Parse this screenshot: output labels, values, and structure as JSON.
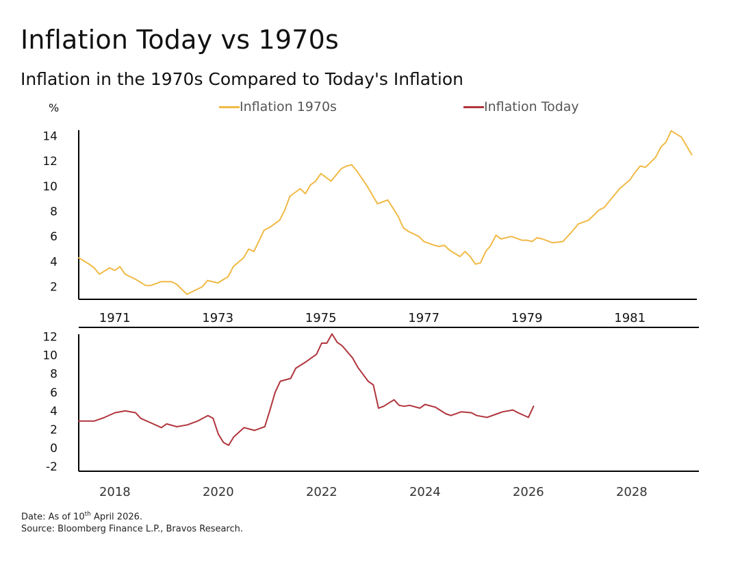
{
  "title": "Inflation Today vs 1970s",
  "subtitle": "Inflation in the 1970s Compared to Today's Inflation",
  "y_unit": "%",
  "footer": {
    "date_prefix": "Date: As of 10",
    "date_sup": "th",
    "date_suffix": " April 2026.",
    "source": "Source: Bloomberg Finance L.P., Bravos Research."
  },
  "colors": {
    "series_1970s": "#F0B944",
    "series_today": "#B0343C",
    "axis": "#000000"
  },
  "chart_data": [
    {
      "type": "line",
      "panel": "top",
      "legend_placement": "top-center",
      "grid": false,
      "xlim": [
        1970.3,
        1982.3
      ],
      "ylim": [
        1,
        15
      ],
      "y_ticks": [
        2,
        4,
        6,
        8,
        10,
        12,
        14
      ],
      "x_ticks": [
        "1971",
        "1973",
        "1975",
        "1977",
        "1979",
        "1981"
      ],
      "series": [
        {
          "name": "Inflation 1970s",
          "x": [
            1970.3,
            1970.5,
            1970.6,
            1970.7,
            1970.9,
            1971.0,
            1971.1,
            1971.2,
            1971.4,
            1971.6,
            1971.7,
            1971.9,
            1972.1,
            1972.2,
            1972.4,
            1972.5,
            1972.7,
            1972.8,
            1973.0,
            1973.2,
            1973.3,
            1973.5,
            1973.6,
            1973.7,
            1973.9,
            1974.0,
            1974.2,
            1974.3,
            1974.4,
            1974.6,
            1974.7,
            1974.8,
            1974.9,
            1975.0,
            1975.2,
            1975.4,
            1975.5,
            1975.6,
            1975.7,
            1975.9,
            1976.0,
            1976.1,
            1976.3,
            1976.5,
            1976.6,
            1976.7,
            1976.9,
            1977.0,
            1977.2,
            1977.3,
            1977.4,
            1977.5,
            1977.7,
            1977.8,
            1977.9,
            1978.0,
            1978.1,
            1978.2,
            1978.3,
            1978.4,
            1978.5,
            1978.7,
            1978.9,
            1979.0,
            1979.1,
            1979.2,
            1979.3,
            1979.5,
            1979.7,
            1979.9,
            1980.0,
            1980.2,
            1980.4,
            1980.5,
            1980.7,
            1980.8,
            1981.0,
            1981.1,
            1981.2,
            1981.3,
            1981.5,
            1981.6,
            1981.7,
            1981.8,
            1982.0,
            1982.2
          ],
          "values": [
            4.3,
            3.8,
            3.5,
            3.0,
            3.5,
            3.3,
            3.6,
            3.0,
            2.6,
            2.1,
            2.1,
            2.4,
            2.4,
            2.2,
            1.4,
            1.6,
            2.0,
            2.5,
            2.3,
            2.8,
            3.6,
            4.3,
            5.0,
            4.8,
            6.5,
            6.7,
            7.3,
            8.1,
            9.2,
            9.8,
            9.4,
            10.1,
            10.4,
            11.0,
            10.4,
            11.4,
            11.6,
            11.7,
            11.2,
            10.0,
            9.3,
            8.6,
            8.9,
            7.6,
            6.7,
            6.4,
            6.0,
            5.6,
            5.3,
            5.2,
            5.3,
            4.9,
            4.4,
            4.8,
            4.4,
            3.8,
            3.9,
            4.8,
            5.3,
            6.1,
            5.8,
            6.0,
            5.7,
            5.7,
            5.6,
            5.9,
            5.8,
            5.5,
            5.6,
            6.5,
            7.0,
            7.3,
            8.1,
            8.3,
            9.3,
            9.8,
            10.5,
            11.1,
            11.6,
            11.5,
            12.3,
            13.1,
            13.5,
            14.4,
            13.9,
            12.5
          ]
        }
      ]
    },
    {
      "type": "line",
      "panel": "bottom",
      "grid": false,
      "xlim": [
        2017.3,
        2029.3
      ],
      "ylim": [
        -2.5,
        13
      ],
      "y_ticks": [
        12,
        10,
        8,
        6,
        4,
        2,
        0,
        -2
      ],
      "x_ticks": [
        "2018",
        "2020",
        "2022",
        "2024",
        "2026",
        "2028"
      ],
      "series": [
        {
          "name": "Inflation Today",
          "x": [
            2017.3,
            2017.6,
            2017.8,
            2018.0,
            2018.2,
            2018.4,
            2018.5,
            2018.7,
            2018.9,
            2019.0,
            2019.2,
            2019.4,
            2019.6,
            2019.8,
            2019.9,
            2020.0,
            2020.1,
            2020.2,
            2020.3,
            2020.5,
            2020.7,
            2020.9,
            2021.0,
            2021.1,
            2021.2,
            2021.4,
            2021.5,
            2021.7,
            2021.9,
            2022.0,
            2022.1,
            2022.2,
            2022.3,
            2022.4,
            2022.6,
            2022.7,
            2022.9,
            2023.0,
            2023.1,
            2023.2,
            2023.4,
            2023.5,
            2023.6,
            2023.7,
            2023.9,
            2024.0,
            2024.2,
            2024.4,
            2024.5,
            2024.7,
            2024.9,
            2025.0,
            2025.2,
            2025.4,
            2025.5,
            2025.7,
            2025.8,
            2026.0,
            2026.1
          ],
          "values": [
            2.9,
            2.9,
            3.3,
            3.8,
            4.0,
            3.8,
            3.2,
            2.7,
            2.2,
            2.6,
            2.3,
            2.5,
            2.9,
            3.5,
            3.2,
            1.5,
            0.6,
            0.3,
            1.2,
            2.2,
            1.9,
            2.3,
            4.1,
            6.0,
            7.2,
            7.5,
            8.6,
            9.3,
            10.1,
            11.3,
            11.3,
            12.3,
            11.4,
            11.0,
            9.7,
            8.7,
            7.2,
            6.8,
            4.3,
            4.5,
            5.2,
            4.6,
            4.5,
            4.6,
            4.3,
            4.7,
            4.4,
            3.7,
            3.5,
            3.9,
            3.8,
            3.5,
            3.3,
            3.7,
            3.9,
            4.1,
            3.8,
            3.3,
            4.5
          ]
        }
      ]
    }
  ]
}
